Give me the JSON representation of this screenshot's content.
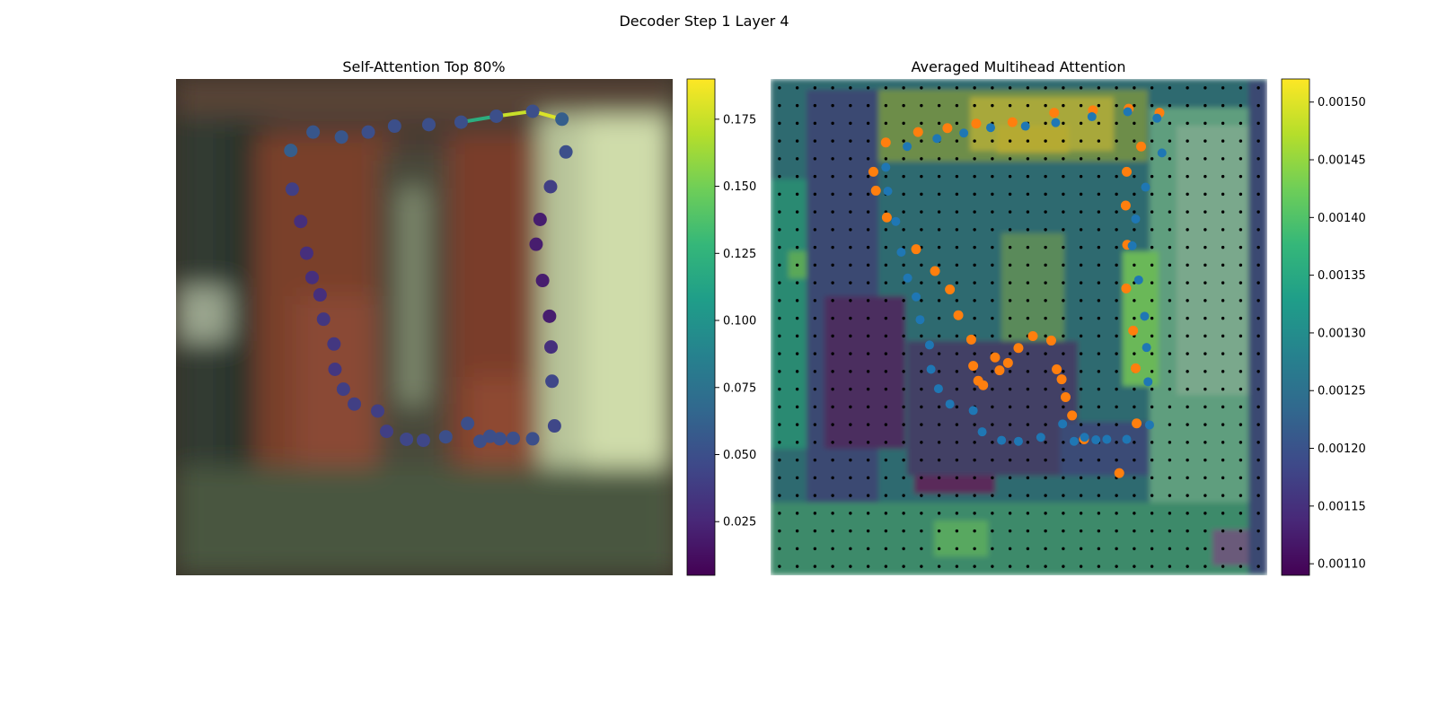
{
  "figure": {
    "title": "Decoder Step 1 Layer 4"
  },
  "colors": {
    "viridis": [
      "#440154",
      "#482878",
      "#3e4989",
      "#31688e",
      "#26828e",
      "#1f9e89",
      "#35b779",
      "#6ece58",
      "#b5de2b",
      "#fde725"
    ],
    "orange": "#ff7f0e",
    "blue": "#1f77b4",
    "grid_dot": "#000000"
  },
  "chart_data": [
    {
      "type": "scatter",
      "title": "Self-Attention Top 80%",
      "xlabel": "",
      "ylabel": "",
      "xlim": [
        0,
        1
      ],
      "ylim": [
        0,
        1
      ],
      "background": "blurred photo",
      "grid": false,
      "colorbar": {
        "min": 0.005,
        "max": 0.19,
        "ticks": [
          0.025,
          0.05,
          0.075,
          0.1,
          0.125,
          0.15,
          0.175
        ],
        "tick_labels": [
          "0.025",
          "0.050",
          "0.075",
          "0.100",
          "0.125",
          "0.150",
          "0.175"
        ]
      },
      "points": [
        {
          "x": 0.231,
          "y": 0.144,
          "v": 0.06
        },
        {
          "x": 0.276,
          "y": 0.107,
          "v": 0.055
        },
        {
          "x": 0.333,
          "y": 0.117,
          "v": 0.055
        },
        {
          "x": 0.387,
          "y": 0.107,
          "v": 0.05
        },
        {
          "x": 0.44,
          "y": 0.095,
          "v": 0.05
        },
        {
          "x": 0.509,
          "y": 0.092,
          "v": 0.05
        },
        {
          "x": 0.574,
          "y": 0.087,
          "v": 0.05
        },
        {
          "x": 0.645,
          "y": 0.075,
          "v": 0.05
        },
        {
          "x": 0.718,
          "y": 0.065,
          "v": 0.05
        },
        {
          "x": 0.777,
          "y": 0.081,
          "v": 0.06
        },
        {
          "x": 0.785,
          "y": 0.147,
          "v": 0.05
        },
        {
          "x": 0.754,
          "y": 0.217,
          "v": 0.04
        },
        {
          "x": 0.733,
          "y": 0.283,
          "v": 0.02
        },
        {
          "x": 0.725,
          "y": 0.333,
          "v": 0.02
        },
        {
          "x": 0.738,
          "y": 0.406,
          "v": 0.02
        },
        {
          "x": 0.752,
          "y": 0.478,
          "v": 0.02
        },
        {
          "x": 0.755,
          "y": 0.54,
          "v": 0.03
        },
        {
          "x": 0.757,
          "y": 0.609,
          "v": 0.045
        },
        {
          "x": 0.762,
          "y": 0.699,
          "v": 0.045
        },
        {
          "x": 0.718,
          "y": 0.725,
          "v": 0.05
        },
        {
          "x": 0.679,
          "y": 0.724,
          "v": 0.05
        },
        {
          "x": 0.652,
          "y": 0.725,
          "v": 0.05
        },
        {
          "x": 0.632,
          "y": 0.72,
          "v": 0.05
        },
        {
          "x": 0.612,
          "y": 0.73,
          "v": 0.05
        },
        {
          "x": 0.587,
          "y": 0.694,
          "v": 0.05
        },
        {
          "x": 0.543,
          "y": 0.721,
          "v": 0.05
        },
        {
          "x": 0.498,
          "y": 0.728,
          "v": 0.045
        },
        {
          "x": 0.464,
          "y": 0.726,
          "v": 0.045
        },
        {
          "x": 0.424,
          "y": 0.71,
          "v": 0.04
        },
        {
          "x": 0.406,
          "y": 0.669,
          "v": 0.04
        },
        {
          "x": 0.359,
          "y": 0.655,
          "v": 0.04
        },
        {
          "x": 0.337,
          "y": 0.625,
          "v": 0.04
        },
        {
          "x": 0.32,
          "y": 0.585,
          "v": 0.035
        },
        {
          "x": 0.318,
          "y": 0.534,
          "v": 0.035
        },
        {
          "x": 0.297,
          "y": 0.484,
          "v": 0.035
        },
        {
          "x": 0.29,
          "y": 0.435,
          "v": 0.03
        },
        {
          "x": 0.274,
          "y": 0.4,
          "v": 0.03
        },
        {
          "x": 0.263,
          "y": 0.351,
          "v": 0.03
        },
        {
          "x": 0.251,
          "y": 0.287,
          "v": 0.03
        },
        {
          "x": 0.234,
          "y": 0.222,
          "v": 0.04
        }
      ],
      "edges": [
        {
          "from": 6,
          "to": 7,
          "v": 0.12
        },
        {
          "from": 7,
          "to": 8,
          "v": 0.175
        },
        {
          "from": 8,
          "to": 9,
          "v": 0.18
        }
      ]
    },
    {
      "type": "heatmap",
      "title": "Averaged Multihead Attention",
      "xlabel": "",
      "ylabel": "",
      "xlim": [
        0,
        1
      ],
      "ylim": [
        0,
        1
      ],
      "grid_dots": true,
      "colorbar": {
        "min": 0.00109,
        "max": 0.00152,
        "ticks": [
          0.0011,
          0.00115,
          0.0012,
          0.00125,
          0.0013,
          0.00135,
          0.0014,
          0.00145,
          0.0015
        ],
        "tick_labels": [
          "0.00110",
          "0.00115",
          "0.00120",
          "0.00125",
          "0.00130",
          "0.00135",
          "0.00140",
          "0.00145",
          "0.00150"
        ]
      },
      "series": [
        {
          "color": "#ff7f0e",
          "points": [
            {
              "x": 0.207,
              "y": 0.187
            },
            {
              "x": 0.212,
              "y": 0.225
            },
            {
              "x": 0.232,
              "y": 0.128
            },
            {
              "x": 0.234,
              "y": 0.279
            },
            {
              "x": 0.293,
              "y": 0.343
            },
            {
              "x": 0.297,
              "y": 0.107
            },
            {
              "x": 0.331,
              "y": 0.387
            },
            {
              "x": 0.356,
              "y": 0.099
            },
            {
              "x": 0.361,
              "y": 0.424
            },
            {
              "x": 0.378,
              "y": 0.476
            },
            {
              "x": 0.404,
              "y": 0.525
            },
            {
              "x": 0.408,
              "y": 0.578
            },
            {
              "x": 0.414,
              "y": 0.09
            },
            {
              "x": 0.418,
              "y": 0.608
            },
            {
              "x": 0.428,
              "y": 0.617
            },
            {
              "x": 0.452,
              "y": 0.561
            },
            {
              "x": 0.461,
              "y": 0.587
            },
            {
              "x": 0.478,
              "y": 0.572
            },
            {
              "x": 0.487,
              "y": 0.087
            },
            {
              "x": 0.499,
              "y": 0.542
            },
            {
              "x": 0.528,
              "y": 0.518
            },
            {
              "x": 0.565,
              "y": 0.527
            },
            {
              "x": 0.571,
              "y": 0.068
            },
            {
              "x": 0.576,
              "y": 0.585
            },
            {
              "x": 0.586,
              "y": 0.605
            },
            {
              "x": 0.594,
              "y": 0.641
            },
            {
              "x": 0.607,
              "y": 0.678
            },
            {
              "x": 0.631,
              "y": 0.726
            },
            {
              "x": 0.649,
              "y": 0.063
            },
            {
              "x": 0.702,
              "y": 0.794
            },
            {
              "x": 0.715,
              "y": 0.255
            },
            {
              "x": 0.716,
              "y": 0.422
            },
            {
              "x": 0.717,
              "y": 0.187
            },
            {
              "x": 0.718,
              "y": 0.334
            },
            {
              "x": 0.721,
              "y": 0.06
            },
            {
              "x": 0.73,
              "y": 0.507
            },
            {
              "x": 0.735,
              "y": 0.583
            },
            {
              "x": 0.737,
              "y": 0.694
            },
            {
              "x": 0.746,
              "y": 0.136
            },
            {
              "x": 0.783,
              "y": 0.068
            }
          ]
        },
        {
          "color": "#1f77b4",
          "points": [
            {
              "x": 0.232,
              "y": 0.178
            },
            {
              "x": 0.236,
              "y": 0.226
            },
            {
              "x": 0.252,
              "y": 0.287
            },
            {
              "x": 0.263,
              "y": 0.349
            },
            {
              "x": 0.276,
              "y": 0.401
            },
            {
              "x": 0.293,
              "y": 0.439
            },
            {
              "x": 0.301,
              "y": 0.485
            },
            {
              "x": 0.32,
              "y": 0.536
            },
            {
              "x": 0.323,
              "y": 0.585
            },
            {
              "x": 0.338,
              "y": 0.624
            },
            {
              "x": 0.361,
              "y": 0.655
            },
            {
              "x": 0.275,
              "y": 0.136
            },
            {
              "x": 0.335,
              "y": 0.12
            },
            {
              "x": 0.389,
              "y": 0.109
            },
            {
              "x": 0.443,
              "y": 0.098
            },
            {
              "x": 0.513,
              "y": 0.095
            },
            {
              "x": 0.574,
              "y": 0.088
            },
            {
              "x": 0.647,
              "y": 0.076
            },
            {
              "x": 0.719,
              "y": 0.066
            },
            {
              "x": 0.778,
              "y": 0.079
            },
            {
              "x": 0.788,
              "y": 0.149
            },
            {
              "x": 0.755,
              "y": 0.218
            },
            {
              "x": 0.735,
              "y": 0.282
            },
            {
              "x": 0.728,
              "y": 0.336
            },
            {
              "x": 0.741,
              "y": 0.405
            },
            {
              "x": 0.753,
              "y": 0.478
            },
            {
              "x": 0.757,
              "y": 0.541
            },
            {
              "x": 0.76,
              "y": 0.61
            },
            {
              "x": 0.763,
              "y": 0.697
            },
            {
              "x": 0.717,
              "y": 0.726
            },
            {
              "x": 0.677,
              "y": 0.726
            },
            {
              "x": 0.655,
              "y": 0.727
            },
            {
              "x": 0.632,
              "y": 0.722
            },
            {
              "x": 0.611,
              "y": 0.73
            },
            {
              "x": 0.588,
              "y": 0.695
            },
            {
              "x": 0.544,
              "y": 0.722
            },
            {
              "x": 0.499,
              "y": 0.73
            },
            {
              "x": 0.465,
              "y": 0.728
            },
            {
              "x": 0.426,
              "y": 0.711
            },
            {
              "x": 0.408,
              "y": 0.668
            }
          ]
        }
      ]
    }
  ]
}
